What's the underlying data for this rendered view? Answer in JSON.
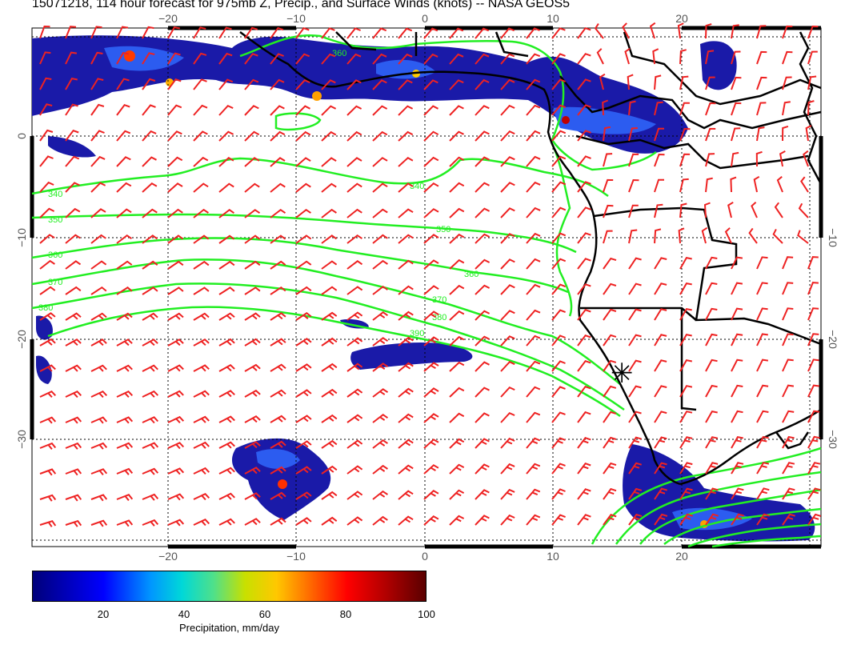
{
  "title": "15071218, 114 hour forecast for 975mb Z, Precip., and Surface Winds (knots) -- NASA GEOS5",
  "map": {
    "lon_ticks": [
      "−20",
      "−10",
      "0",
      "10",
      "20"
    ],
    "lat_ticks": [
      "0",
      "−10",
      "−20",
      "−30"
    ],
    "contour_color": "#22ee22",
    "wind_barb_color": "#ee2222",
    "coastline_color": "#000000",
    "contour_labels": [
      "340",
      "350",
      "360",
      "370",
      "380",
      "390"
    ],
    "marker_label": "✳"
  },
  "colorbar": {
    "ticks": [
      "20",
      "40",
      "60",
      "80",
      "100"
    ],
    "label": "Precipitation, mm/day"
  }
}
